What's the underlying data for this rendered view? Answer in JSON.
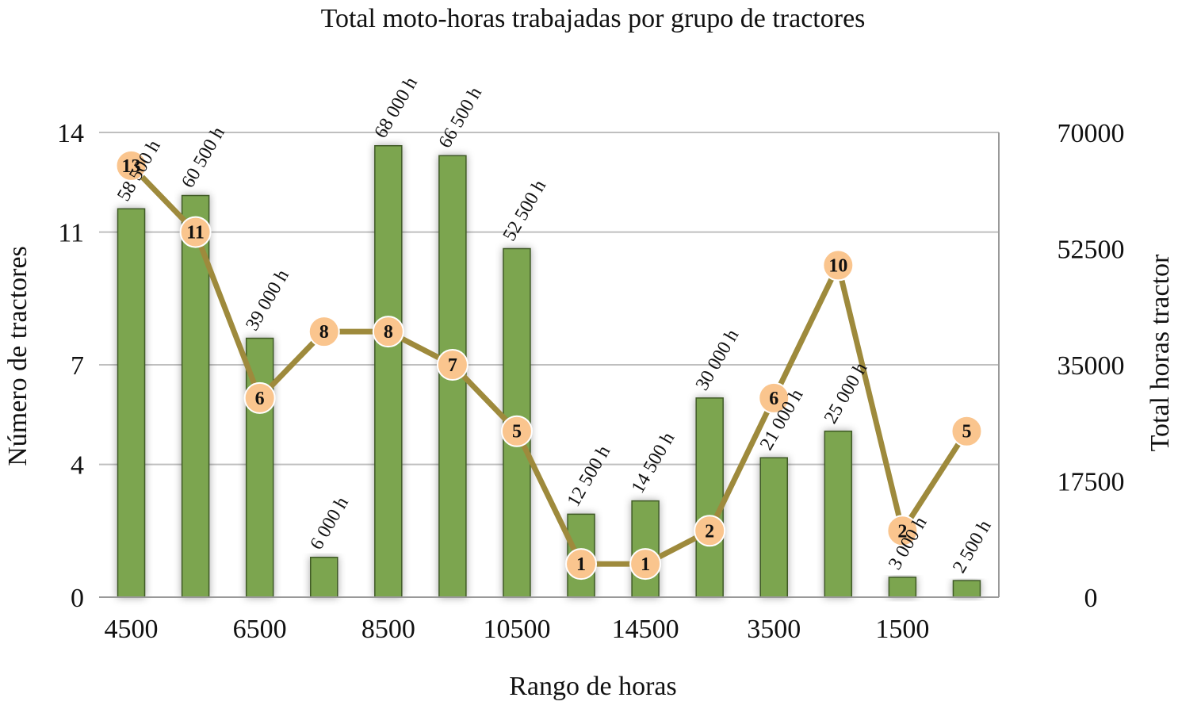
{
  "chart_data": {
    "type": "bar",
    "title": "Total moto-horas trabajadas por grupo de tractores",
    "xlabel": "Rango de horas",
    "ylabel_left": "Número de tractores",
    "ylabel_right": "Total horas tractor",
    "x_tick_labels": [
      "4500",
      "6500",
      "8500",
      "10500",
      "14500",
      "3500",
      "1500"
    ],
    "y_left_ticks": [
      0,
      4,
      7,
      11,
      14
    ],
    "y_left_ylim": [
      0,
      14
    ],
    "y_right_ticks": [
      0,
      17500,
      35000,
      52500,
      70000
    ],
    "y_right_ylim": [
      0,
      70000
    ],
    "grid": true,
    "series": [
      {
        "kind": "bar",
        "axis": "right",
        "values": [
          58500,
          60500,
          39000,
          6000,
          68000,
          66500,
          52500,
          12500,
          14500,
          30000,
          21000,
          25000,
          3000,
          2500
        ],
        "data_labels": [
          "58 500 h",
          "60 500 h",
          "39 000 h",
          "6 000 h",
          "68 000 h",
          "66 500 h",
          "52 500 h",
          "12 500 h",
          "14 500 h",
          "30 000 h",
          "21 000 h",
          "25 000 h",
          "3 000 h",
          "2 500 h"
        ]
      },
      {
        "kind": "line",
        "axis": "left",
        "values": [
          13,
          11,
          6,
          8,
          8,
          7,
          5,
          1,
          1,
          2,
          6,
          10,
          2,
          5
        ],
        "data_labels": [
          "13",
          "11",
          "6",
          "8",
          "8",
          "7",
          "5",
          "1",
          "1",
          "2",
          "6",
          "10",
          "2",
          "5"
        ]
      }
    ],
    "colors": {
      "bar": "#7ba550",
      "bar_edge": "#3f5a28",
      "line": "#9e8a3c",
      "marker": "#fac58e",
      "grid": "#bfbfbf",
      "axis": "#999999"
    }
  }
}
